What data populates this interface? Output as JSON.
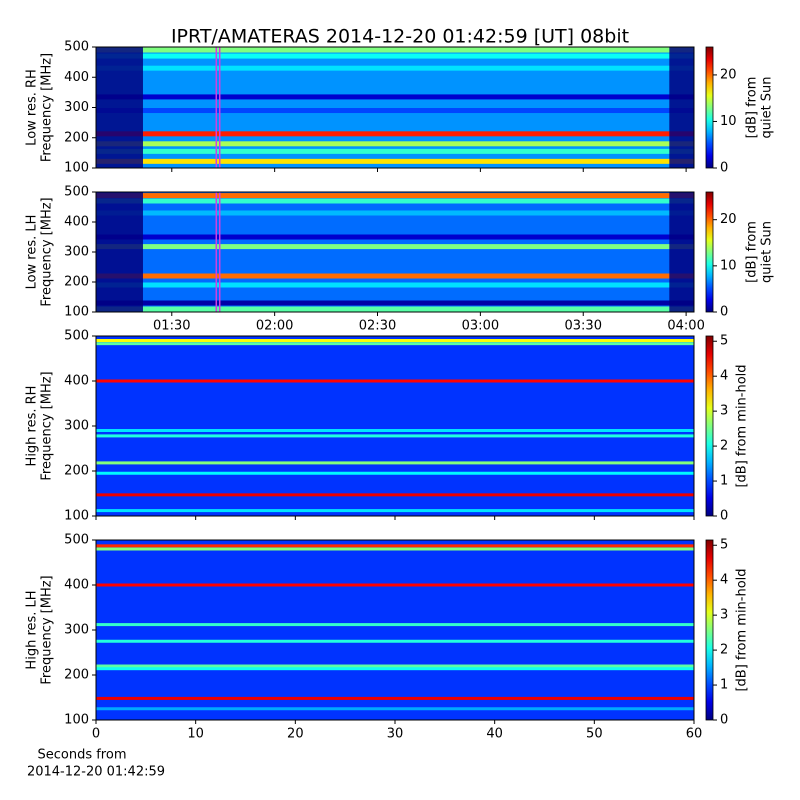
{
  "chart_data": [
    {
      "type": "spectrogram",
      "title": "IPRT/AMATERAS 2014-12-20 01:42:59 [UT]   08bit",
      "ylabel": [
        "Low res. RH",
        "Frequency [MHz]"
      ],
      "ylim": [
        100,
        500
      ],
      "yticks": [
        100,
        200,
        300,
        400,
        500
      ],
      "xlim": [
        67.9,
        242.3
      ],
      "xticks": [
        {
          "value": 90,
          "label": "01:30"
        },
        {
          "value": 120,
          "label": "02:00"
        },
        {
          "value": 150,
          "label": "02:30"
        },
        {
          "value": 180,
          "label": "03:00"
        },
        {
          "value": 210,
          "label": "03:30"
        },
        {
          "value": 240,
          "label": "04:00"
        }
      ],
      "xtick_labels": false,
      "colormap": "jet",
      "clim": [
        0,
        26
      ],
      "cticks": [
        0,
        10,
        20
      ],
      "clabel": [
        "[dB] from",
        "quiet Sun"
      ],
      "base_level": 7,
      "data_range": [
        81.6,
        235.1
      ],
      "window": [
        102.98,
        103.98
      ],
      "window_color": "#d040e0",
      "bands": [
        {
          "freq": 490,
          "level": 13
        },
        {
          "freq": 470,
          "level": 10
        },
        {
          "freq": 430,
          "level": 9
        },
        {
          "freq": 335,
          "level": 2
        },
        {
          "freq": 290,
          "level": 5
        },
        {
          "freq": 213,
          "level": 22
        },
        {
          "freq": 180,
          "level": 14
        },
        {
          "freq": 155,
          "level": 11
        },
        {
          "freq": 122,
          "level": 17
        }
      ]
    },
    {
      "type": "spectrogram",
      "ylabel": [
        "Low res. LH",
        "Frequency [MHz]"
      ],
      "ylim": [
        100,
        500
      ],
      "yticks": [
        100,
        200,
        300,
        400,
        500
      ],
      "xlim": [
        67.9,
        242.3
      ],
      "xticks": [
        {
          "value": 90,
          "label": "01:30"
        },
        {
          "value": 120,
          "label": "02:00"
        },
        {
          "value": 150,
          "label": "02:30"
        },
        {
          "value": 180,
          "label": "03:00"
        },
        {
          "value": 210,
          "label": "03:30"
        },
        {
          "value": 240,
          "label": "04:00"
        }
      ],
      "xtick_labels": true,
      "colormap": "jet",
      "clim": [
        0,
        26
      ],
      "cticks": [
        0,
        10,
        20
      ],
      "clabel": [
        "[dB] from",
        "quiet Sun"
      ],
      "base_level": 6,
      "data_range": [
        81.6,
        235.1
      ],
      "window": [
        102.98,
        103.98
      ],
      "window_color": "#d040e0",
      "bands": [
        {
          "freq": 488,
          "level": 20
        },
        {
          "freq": 470,
          "level": 11
        },
        {
          "freq": 430,
          "level": 8
        },
        {
          "freq": 350,
          "level": 2
        },
        {
          "freq": 318,
          "level": 13
        },
        {
          "freq": 220,
          "level": 20
        },
        {
          "freq": 190,
          "level": 9
        },
        {
          "freq": 130,
          "level": 1
        },
        {
          "freq": 110,
          "level": 12
        }
      ]
    },
    {
      "type": "spectrogram",
      "ylabel": [
        "High res. RH",
        "Frequency [MHz]"
      ],
      "ylim": [
        100,
        500
      ],
      "yticks": [
        100,
        200,
        300,
        400,
        500
      ],
      "xlim": [
        0,
        60
      ],
      "xticks": [
        0,
        10,
        20,
        30,
        40,
        50,
        60
      ],
      "xtick_labels": false,
      "colormap": "jet",
      "clim": [
        0,
        5.15
      ],
      "cticks": [
        0,
        1,
        2,
        3,
        4,
        5
      ],
      "clabel": [
        "[dB] from min-hold"
      ],
      "base_level": 0.9,
      "bands": [
        {
          "freq": 490,
          "level": 3.2
        },
        {
          "freq": 483,
          "level": 2.4
        },
        {
          "freq": 400,
          "level": 4.5
        },
        {
          "freq": 290,
          "level": 1.8
        },
        {
          "freq": 278,
          "level": 2.1
        },
        {
          "freq": 218,
          "level": 2.6
        },
        {
          "freq": 195,
          "level": 1.9
        },
        {
          "freq": 147,
          "level": 4.6
        },
        {
          "freq": 112,
          "level": 1.8
        }
      ]
    },
    {
      "type": "spectrogram",
      "ylabel": [
        "High res. LH",
        "Frequency [MHz]"
      ],
      "ylim": [
        100,
        500
      ],
      "yticks": [
        100,
        200,
        300,
        400,
        500
      ],
      "xlim": [
        0,
        60
      ],
      "xticks": [
        0,
        10,
        20,
        30,
        40,
        50,
        60
      ],
      "xtick_labels": true,
      "xlabel": [
        "Seconds from",
        "2014-12-20 01:42:59"
      ],
      "colormap": "jet",
      "clim": [
        0,
        5.15
      ],
      "cticks": [
        0,
        1,
        2,
        3,
        4,
        5
      ],
      "clabel": [
        "[dB] from min-hold"
      ],
      "base_level": 0.9,
      "bands": [
        {
          "freq": 487,
          "level": 4.3
        },
        {
          "freq": 480,
          "level": 2.6
        },
        {
          "freq": 400,
          "level": 4.5
        },
        {
          "freq": 312,
          "level": 2.2
        },
        {
          "freq": 275,
          "level": 2.1
        },
        {
          "freq": 220,
          "level": 2.4
        },
        {
          "freq": 214,
          "level": 2.0
        },
        {
          "freq": 148,
          "level": 4.6
        },
        {
          "freq": 125,
          "level": 1.5
        }
      ]
    }
  ]
}
